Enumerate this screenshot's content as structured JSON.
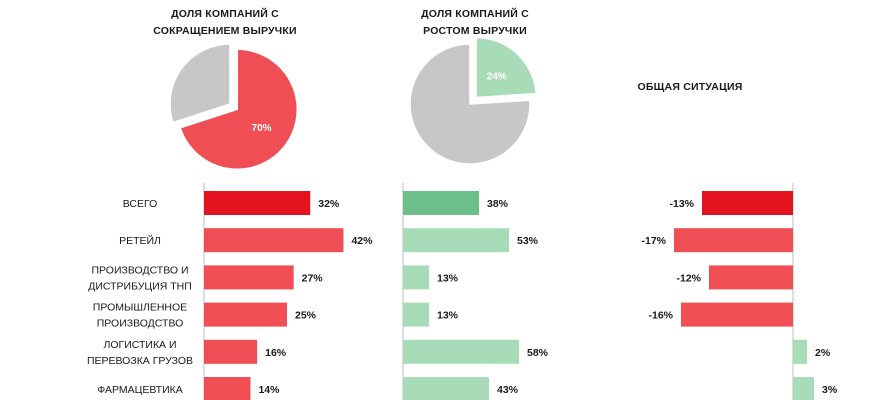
{
  "titles": {
    "decline": [
      "ДОЛЯ КОМПАНИЙ С",
      "СОКРАЩЕНИЕМ ВЫРУЧКИ"
    ],
    "growth": [
      "ДОЛЯ КОМПАНИЙ С",
      "РОСТОМ ВЫРУЧКИ"
    ],
    "overall": "ОБЩАЯ СИТУАЦИЯ"
  },
  "colors": {
    "red": "#f04e55",
    "red_dark": "#e3141f",
    "green": "#a8dcb8",
    "green_dark": "#6cbf89",
    "gray": "#c7c7c7"
  },
  "chart_data": [
    {
      "type": "pie",
      "name": "decline-pie",
      "slices": [
        {
          "value": 70,
          "label": "70%",
          "color": "#f04e55",
          "highlight": true
        },
        {
          "value": 30,
          "label": "",
          "color": "#c7c7c7"
        }
      ]
    },
    {
      "type": "pie",
      "name": "growth-pie",
      "slices": [
        {
          "value": 24,
          "label": "24%",
          "color": "#a8dcb8",
          "highlight": true
        },
        {
          "value": 76,
          "label": "",
          "color": "#c7c7c7"
        }
      ]
    },
    {
      "type": "bar",
      "orientation": "horizontal",
      "categories": [
        [
          "ВСЕГО"
        ],
        [
          "РЕТЕЙЛ"
        ],
        [
          "ПРОИЗВОДСТВО И",
          "ДИСТРИБУЦИЯ ТНП"
        ],
        [
          "ПРОМЫШЛЕННОЕ",
          "ПРОИЗВОДСТВО"
        ],
        [
          "ЛОГИСТИКА И",
          "ПЕРЕВОЗКА ГРУЗОВ"
        ],
        [
          "ФАРМАЦЕВТИКА"
        ]
      ],
      "series": [
        {
          "values": [
            32,
            42,
            27,
            25,
            16,
            14
          ],
          "labels": [
            "32%",
            "42%",
            "27%",
            "25%",
            "16%",
            "14%"
          ]
        },
        {
          "values": [
            38,
            53,
            13,
            13,
            58,
            43
          ],
          "labels": [
            "38%",
            "53%",
            "13%",
            "13%",
            "58%",
            "43%"
          ]
        },
        {
          "values": [
            -13,
            -17,
            -12,
            -16,
            2,
            3
          ],
          "labels": [
            "-13%",
            "-17%",
            "-12%",
            "-16%",
            "2%",
            "3%"
          ]
        }
      ]
    }
  ]
}
